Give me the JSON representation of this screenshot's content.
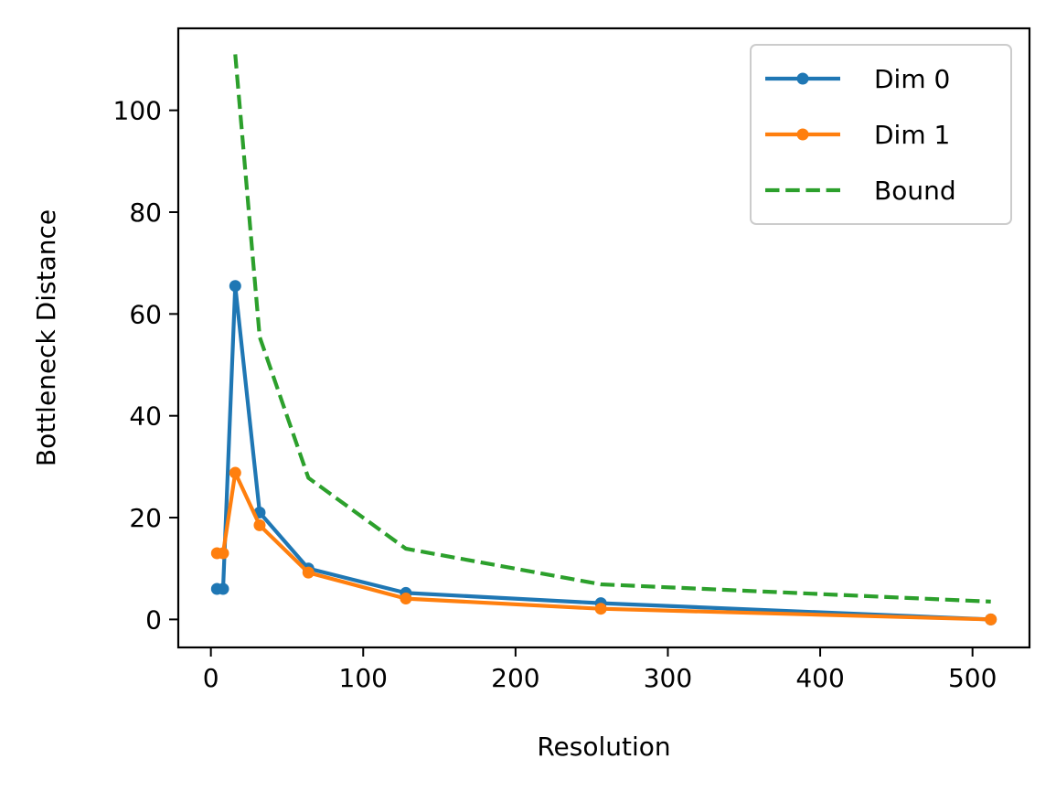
{
  "chart_data": {
    "type": "line",
    "xlabel": "Resolution",
    "ylabel": "Bottleneck Distance",
    "xlim": [
      -21.4,
      537.4
    ],
    "ylim": [
      -5.5,
      116.1
    ],
    "xticks": [
      0,
      100,
      200,
      300,
      400,
      500
    ],
    "yticks": [
      0,
      20,
      40,
      60,
      80,
      100
    ],
    "grid": false,
    "legend_position": "top-right",
    "series": [
      {
        "name": "Dim 0",
        "color": "#1f77b4",
        "style": "solid",
        "marker": "circle",
        "x": [
          4,
          8,
          16,
          32,
          64,
          128,
          256,
          512
        ],
        "y": [
          6,
          6,
          65.5,
          21,
          10,
          5.2,
          3.2,
          0
        ]
      },
      {
        "name": "Dim 1",
        "color": "#ff7f0e",
        "style": "solid",
        "marker": "circle",
        "x": [
          4,
          8,
          16,
          32,
          64,
          128,
          256,
          512
        ],
        "y": [
          13,
          13,
          28.8,
          18.5,
          9.2,
          4.1,
          2.1,
          0
        ]
      },
      {
        "name": "Bound",
        "color": "#2ca02c",
        "style": "dashed",
        "marker": "none",
        "x": [
          16,
          32,
          64,
          128,
          256,
          512
        ],
        "y": [
          111,
          55.5,
          27.8,
          13.9,
          6.9,
          3.5
        ]
      }
    ]
  }
}
